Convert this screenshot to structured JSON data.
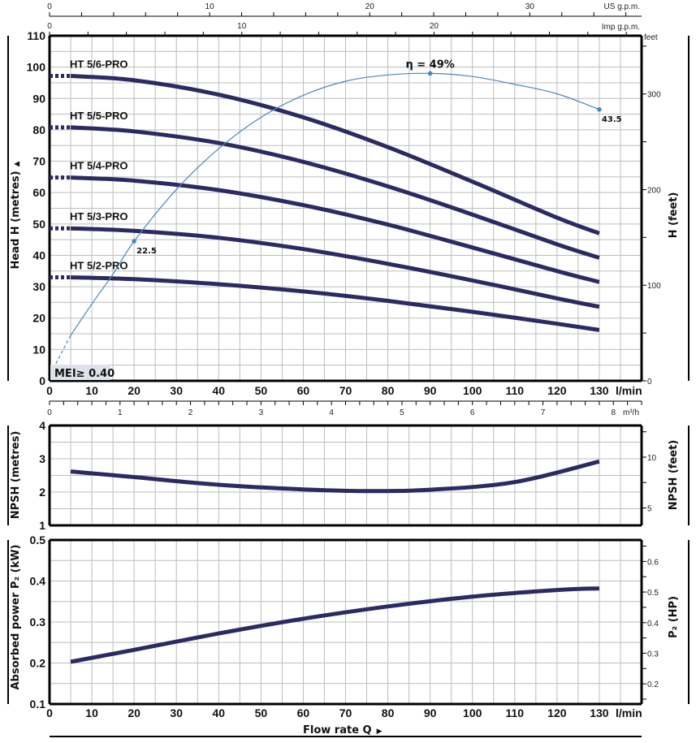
{
  "colors": {
    "curve": "#2b2a63",
    "efficiency": "#4a86c0",
    "grid": "#bdbdbd",
    "axis": "#000000",
    "mei_box": "#dde3ea"
  },
  "chart_data": [
    {
      "id": "head",
      "type": "line",
      "title": "",
      "xlabel": "l/min",
      "ylabel": "Head H  (metres)",
      "ylabel_arrow": "▲",
      "y2label": "H  (feet)",
      "y2unit_top": "feet",
      "xlim": [
        0,
        140
      ],
      "ylim": [
        0,
        110
      ],
      "y2lim": [
        0,
        360.9
      ],
      "grid": true,
      "xticks": [
        0,
        10,
        20,
        30,
        40,
        50,
        60,
        70,
        80,
        90,
        100,
        110,
        120,
        130
      ],
      "xtick_labels": [
        "0",
        "10",
        "20",
        "30",
        "40",
        "50",
        "60",
        "70",
        "80",
        "90",
        "100",
        "110",
        "120",
        "130"
      ],
      "yticks": [
        0,
        10,
        20,
        30,
        40,
        50,
        60,
        70,
        80,
        90,
        100,
        110
      ],
      "ytick_labels": [
        "0",
        "10",
        "20",
        "30",
        "40",
        "50",
        "60",
        "70",
        "80",
        "90",
        "100",
        "110"
      ],
      "y2ticks": [
        0,
        100,
        200,
        300
      ],
      "y2tick_labels": [
        "0",
        "100",
        "200",
        "300"
      ],
      "top_axis_us": {
        "unit": "US g.p.m.",
        "ticks": [
          0,
          10,
          20,
          30
        ],
        "tick_labels": [
          "0",
          "10",
          "20",
          "30"
        ],
        "per_lmin": 0.264172,
        "max": 37
      },
      "top_axis_imp": {
        "unit": "Imp g.p.m.",
        "ticks": [
          0,
          10,
          20
        ],
        "tick_labels": [
          "0",
          "10",
          "20"
        ],
        "per_lmin": 0.219969,
        "max": 30.8
      },
      "bottom_axis_m3h": {
        "unit": "m³/h",
        "ticks": [
          0,
          1,
          2,
          3,
          4,
          5,
          6,
          7,
          8
        ],
        "tick_labels": [
          "0",
          "1",
          "2",
          "3",
          "4",
          "5",
          "6",
          "7",
          "8"
        ],
        "per_lmin": 0.06,
        "max": 8.4
      },
      "x": [
        5,
        20,
        40,
        60,
        80,
        100,
        120,
        130
      ],
      "series": [
        {
          "name": "HT 5/6-PRO",
          "values": [
            97.2,
            95.8,
            91.2,
            84.0,
            74.5,
            63.5,
            52.0,
            47.0
          ]
        },
        {
          "name": "HT 5/5-PRO",
          "values": [
            80.8,
            79.5,
            75.8,
            69.8,
            62.0,
            53.0,
            43.5,
            39.2
          ]
        },
        {
          "name": "HT 5/4-PRO",
          "values": [
            64.8,
            63.8,
            60.8,
            56.0,
            49.8,
            42.5,
            35.0,
            31.5
          ]
        },
        {
          "name": "HT 5/3-PRO",
          "values": [
            48.6,
            47.8,
            45.6,
            42.0,
            37.3,
            32.0,
            26.3,
            23.6
          ]
        },
        {
          "name": "HT 5/2-PRO",
          "values": [
            33.0,
            32.4,
            30.8,
            28.5,
            25.5,
            22.0,
            18.2,
            16.2
          ]
        }
      ],
      "efficiency": {
        "x": [
          1.5,
          5,
          10,
          15,
          20,
          30,
          40,
          50,
          60,
          70,
          80,
          90,
          100,
          110,
          120,
          130
        ],
        "values": [
          5.5,
          14.5,
          24.5,
          34.0,
          44.5,
          61.0,
          74.0,
          84.0,
          91.0,
          95.5,
          97.5,
          98.0,
          97.0,
          94.5,
          91.5,
          86.5
        ],
        "dashed_until_x": 5,
        "points": [
          {
            "x": 20,
            "y": 44.5,
            "label": "22.5"
          },
          {
            "x": 90,
            "y": 98.0,
            "label": "η = 49%"
          },
          {
            "x": 130,
            "y": 86.5,
            "label": "43.5"
          }
        ]
      },
      "annotation": "MEI≥ 0.40"
    },
    {
      "id": "npsh",
      "type": "line",
      "ylabel": "NPSH (metres)",
      "y2label": "NPSH  (feet)",
      "xlim": [
        0,
        140
      ],
      "ylim": [
        1,
        4
      ],
      "y2lim": [
        3.28,
        13.12
      ],
      "grid": true,
      "yticks": [
        1,
        2,
        3,
        4
      ],
      "ytick_labels": [
        "1",
        "2",
        "3",
        "4"
      ],
      "y2ticks": [
        5,
        10
      ],
      "y2tick_labels": [
        "5",
        "10"
      ],
      "x": [
        5,
        20,
        40,
        60,
        75,
        90,
        110,
        130
      ],
      "series": [
        {
          "name": "NPSH",
          "values": [
            2.62,
            2.45,
            2.22,
            2.08,
            2.03,
            2.07,
            2.3,
            2.92
          ]
        }
      ]
    },
    {
      "id": "power",
      "type": "line",
      "ylabel": "Absorbed power  P₂  (kW)",
      "y2label": "P₂  (HP)",
      "xlabel": "l/min",
      "xlabel_main": "Flow rate  Q",
      "xlabel_arrow": "▶",
      "xlim": [
        0,
        140
      ],
      "ylim": [
        0.1,
        0.5
      ],
      "y2lim": [
        0.134,
        0.67
      ],
      "grid": true,
      "xticks": [
        0,
        10,
        20,
        30,
        40,
        50,
        60,
        70,
        80,
        90,
        100,
        110,
        120,
        130
      ],
      "xtick_labels": [
        "0",
        "10",
        "20",
        "30",
        "40",
        "50",
        "60",
        "70",
        "80",
        "90",
        "100",
        "110",
        "120",
        "130"
      ],
      "yticks": [
        0.1,
        0.2,
        0.3,
        0.4,
        0.5
      ],
      "ytick_labels": [
        "0.1",
        "0.2",
        "0.3",
        "0.4",
        "0.5"
      ],
      "y2ticks": [
        0.2,
        0.3,
        0.4,
        0.5,
        0.6
      ],
      "y2tick_labels": [
        "0.2",
        "0.3",
        "0.4",
        "0.5",
        "0.6"
      ],
      "x": [
        5,
        20,
        40,
        60,
        80,
        100,
        120,
        130
      ],
      "series": [
        {
          "name": "P2",
          "values": [
            0.203,
            0.232,
            0.272,
            0.308,
            0.338,
            0.362,
            0.378,
            0.382
          ]
        }
      ]
    }
  ]
}
